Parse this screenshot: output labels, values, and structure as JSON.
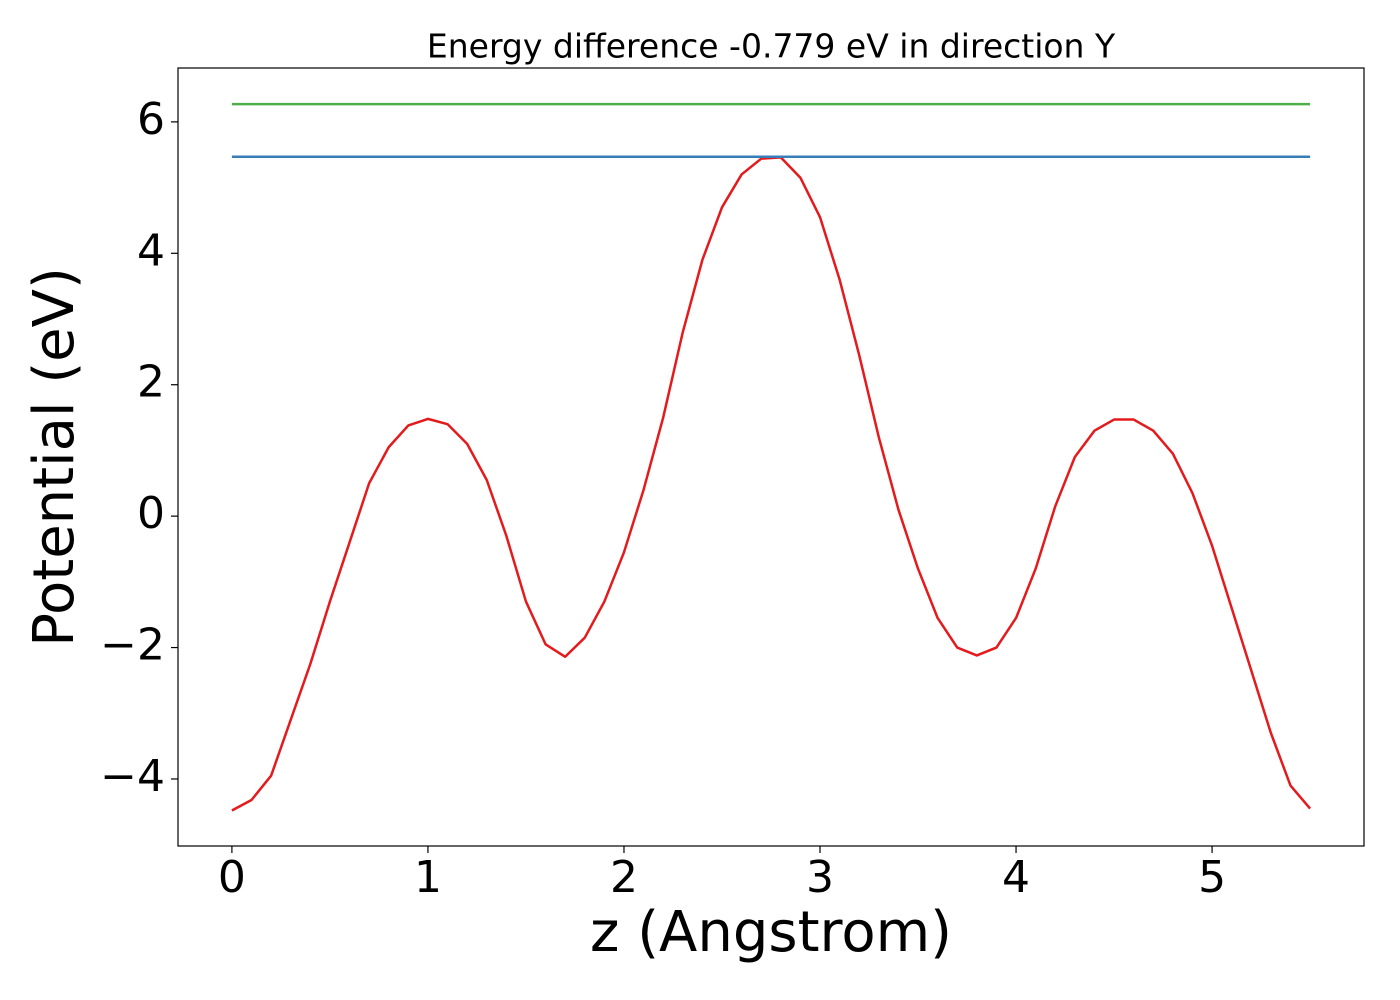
{
  "chart_data": {
    "type": "line",
    "title": "Energy difference -0.779 eV in direction Y",
    "x_label": "z (Angstrom)",
    "y_label": "Potential (eV)",
    "x": [
      0.0,
      0.1,
      0.2,
      0.3,
      0.4,
      0.5,
      0.6,
      0.7,
      0.8,
      0.9,
      1.0,
      1.1,
      1.2,
      1.3,
      1.4,
      1.5,
      1.6,
      1.7,
      1.8,
      1.9,
      2.0,
      2.1,
      2.2,
      2.3,
      2.4,
      2.5,
      2.6,
      2.7,
      2.8,
      2.9,
      3.0,
      3.1,
      3.2,
      3.3,
      3.4,
      3.5,
      3.6,
      3.7,
      3.8,
      3.9,
      4.0,
      4.1,
      4.2,
      4.3,
      4.4,
      4.5,
      4.6,
      4.7,
      4.8,
      4.9,
      5.0,
      5.1,
      5.2,
      5.3,
      5.4,
      5.5
    ],
    "series": [
      {
        "color": "#e41a1c",
        "values": [
          -4.48,
          -4.32,
          -3.95,
          -3.1,
          -2.25,
          -1.3,
          -0.4,
          0.5,
          1.05,
          1.38,
          1.48,
          1.4,
          1.1,
          0.55,
          -0.3,
          -1.3,
          -1.95,
          -2.14,
          -1.85,
          -1.3,
          -0.55,
          0.4,
          1.5,
          2.8,
          3.9,
          4.7,
          5.2,
          5.44,
          5.46,
          5.15,
          4.55,
          3.6,
          2.45,
          1.2,
          0.1,
          -0.8,
          -1.55,
          -2.0,
          -2.12,
          -2.0,
          -1.55,
          -0.8,
          0.15,
          0.9,
          1.3,
          1.47,
          1.47,
          1.3,
          0.95,
          0.35,
          -0.45,
          -1.4,
          -2.35,
          -3.3,
          -4.1,
          -4.45
        ]
      },
      {
        "color": "#377eb8",
        "x": [
          0,
          5.5
        ],
        "values": [
          5.47,
          5.47
        ]
      },
      {
        "color": "#4daf4a",
        "x": [
          0,
          5.5
        ],
        "values": [
          6.27,
          6.27
        ]
      }
    ],
    "xlim": [
      -0.275,
      5.775
    ],
    "ylim": [
      -5.02,
      6.82
    ],
    "xticks": [
      0,
      1,
      2,
      3,
      4,
      5
    ],
    "yticks": [
      {
        "value": -4,
        "label": "−4"
      },
      {
        "value": -2,
        "label": "−2"
      },
      0,
      2,
      4,
      6
    ],
    "grid": false
  }
}
